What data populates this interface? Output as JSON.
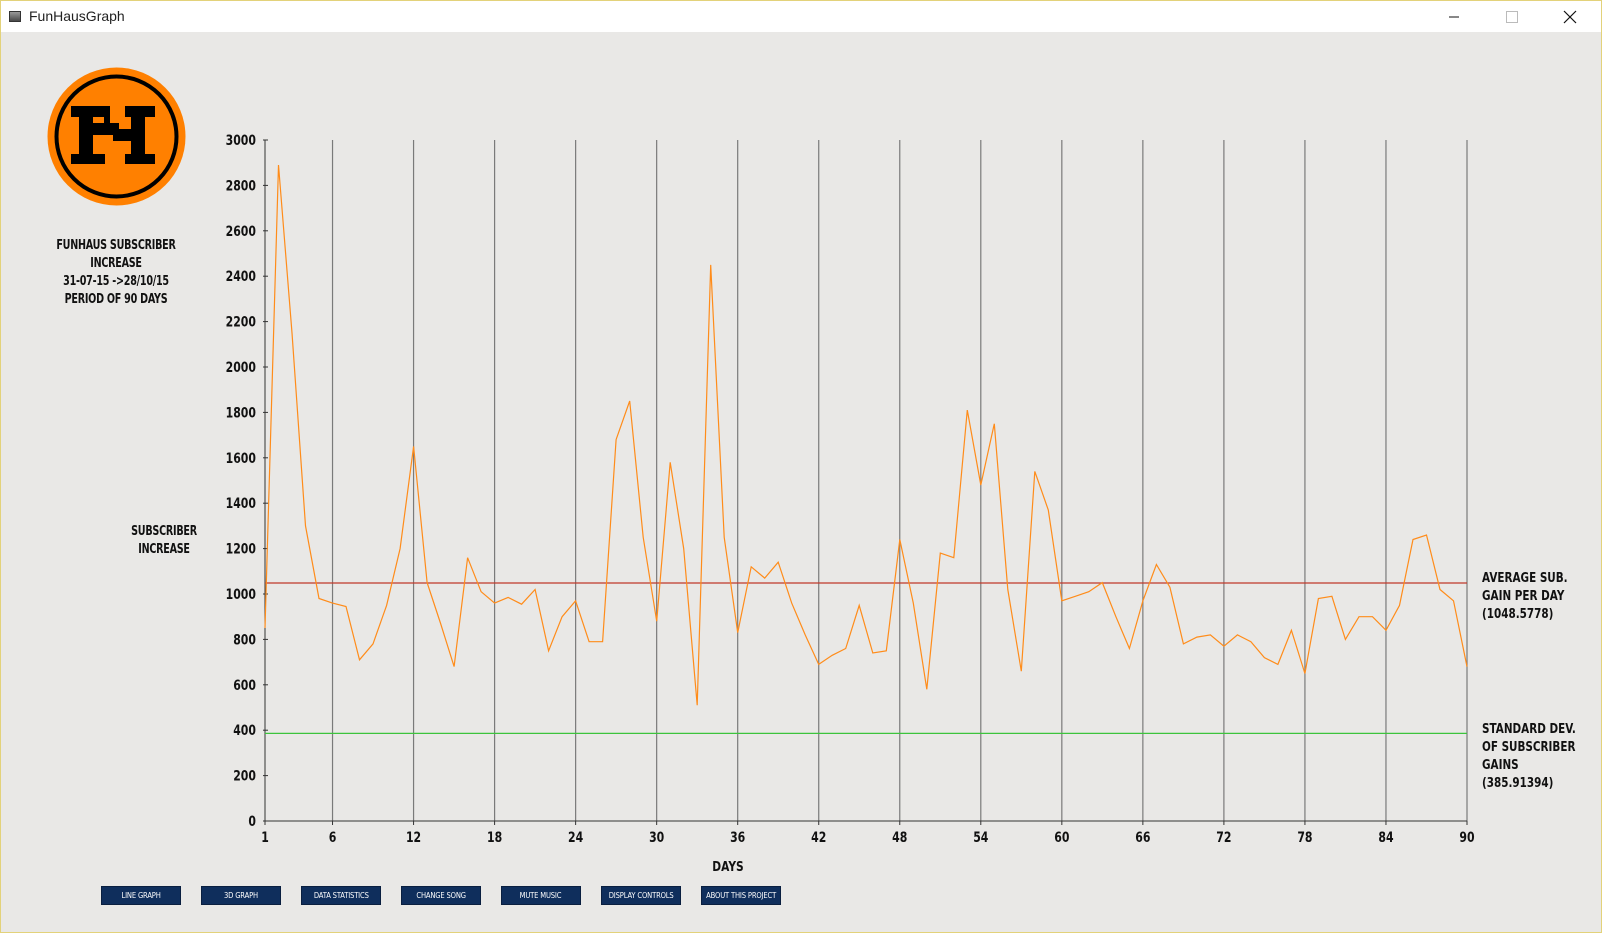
{
  "window": {
    "title": "FunHausGraph"
  },
  "logo": {
    "letters": "FH",
    "outer_color": "#ff8000",
    "ring_color": "#000000"
  },
  "chart_title": {
    "line1": "FUNHAUS SUBSCRIBER",
    "line2": "INCREASE",
    "line3": "31-07-15 ->28/10/15",
    "line4": "PERIOD OF 90 DAYS"
  },
  "ylabel": {
    "line1": "SUBSCRIBER",
    "line2": "INCREASE"
  },
  "xlabel": "DAYS",
  "avg_label": {
    "line1": "AVERAGE SUB.",
    "line2": "GAIN PER DAY",
    "line3": "(1048.5778)"
  },
  "std_label": {
    "line1": "STANDARD DEV.",
    "line2": "OF SUBSCRIBER",
    "line3": "GAINS",
    "line4": "(385.91394)"
  },
  "buttons": {
    "line_graph": "LINE GRAPH",
    "graph_3d": "3D GRAPH",
    "data_statistics": "DATA STATISTICS",
    "change_song": "CHANGE SONG",
    "mute_music": "MUTE MUSIC",
    "display_controls": "DISPLAY CONTROLS",
    "about": "ABOUT THIS PROJECT"
  },
  "colors": {
    "line": "#ff8c1a",
    "average": "#c0392b",
    "std_dev": "#3cc43c",
    "button": "#0f2e5c",
    "background": "#e9e8e6"
  },
  "chart_data": {
    "type": "line",
    "ylim": [
      0,
      3000
    ],
    "xlim": [
      1,
      90
    ],
    "y_ticks": [
      0,
      200,
      400,
      600,
      800,
      1000,
      1200,
      1400,
      1600,
      1800,
      2000,
      2200,
      2400,
      2600,
      2800,
      3000
    ],
    "x_ticks": [
      1,
      6,
      12,
      18,
      24,
      30,
      36,
      42,
      48,
      54,
      60,
      66,
      72,
      78,
      84,
      90
    ],
    "average": 1048.5778,
    "std_dev": 385.91394,
    "series": [
      {
        "values": [
          850,
          2890,
          2150,
          1300,
          980,
          960,
          945,
          710,
          780,
          950,
          1200,
          1650,
          1050,
          870,
          680,
          1160,
          1010,
          960,
          985,
          955,
          1020,
          750,
          900,
          970,
          790,
          790,
          1680,
          1850,
          1250,
          880,
          1580,
          1200,
          510,
          2450,
          1250,
          830,
          1120,
          1070,
          1140,
          960,
          820,
          690,
          730,
          760,
          950,
          740,
          750,
          1240,
          960,
          580,
          1180,
          1160,
          1810,
          1480,
          1750,
          1020,
          660,
          1540,
          1370,
          970,
          990,
          1010,
          1050,
          900,
          760,
          970,
          1130,
          1030,
          780,
          810,
          820,
          770,
          820,
          790,
          720,
          690,
          840,
          650,
          980,
          990,
          800,
          900,
          900,
          840,
          950,
          1240,
          1260,
          1020,
          970,
          680
        ]
      }
    ]
  }
}
